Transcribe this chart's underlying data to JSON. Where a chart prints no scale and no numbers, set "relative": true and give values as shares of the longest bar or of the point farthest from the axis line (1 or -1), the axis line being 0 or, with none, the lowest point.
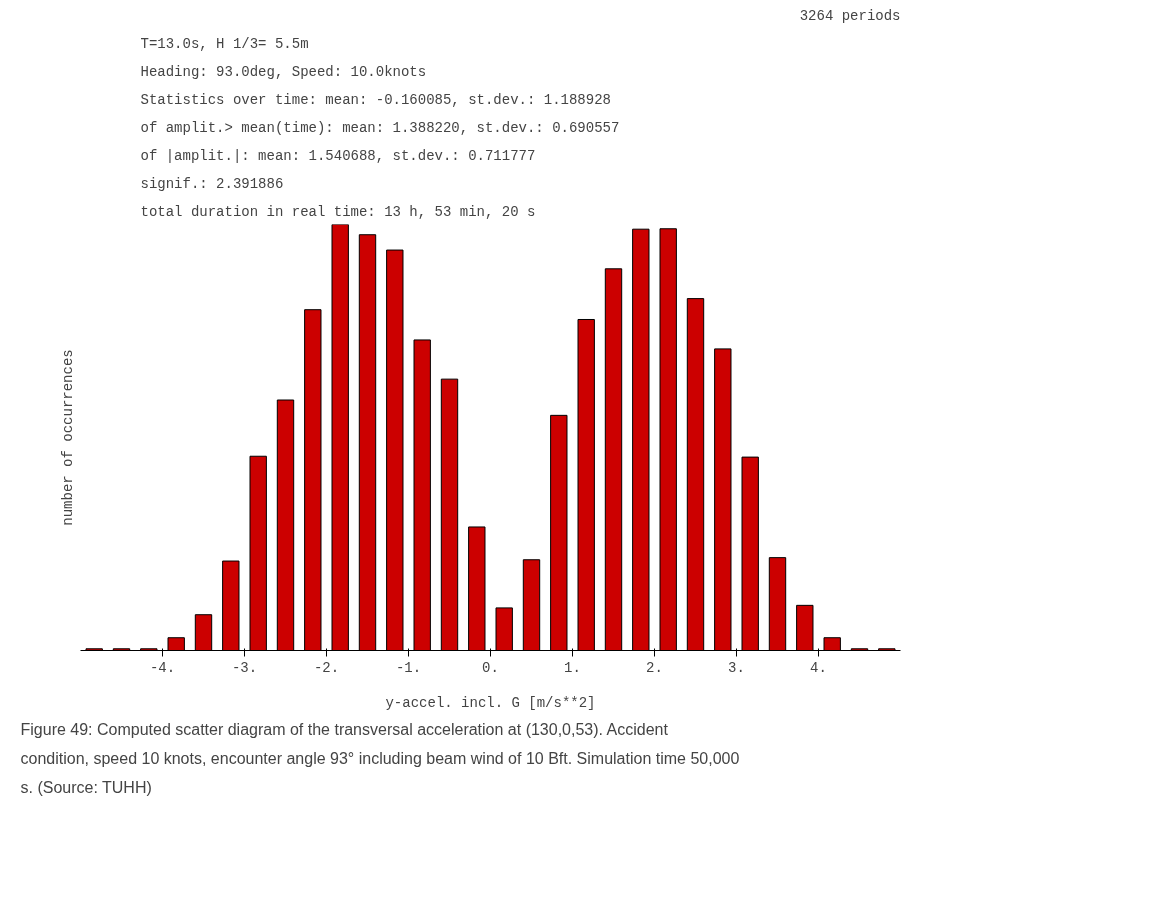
{
  "chart_data": {
    "type": "bar",
    "title": "T=13.0s, H 1/3=  5.5m",
    "subtitle": "Heading:   93.0deg, Speed: 10.0knots",
    "xlabel": "y-accel. incl. G [m/s**2]",
    "ylabel": "number of occurrences",
    "annotations": [
      "Statistics over time:   mean:  -0.160085, st.dev.:  1.188928",
      "of amplit.> mean(time): mean:   1.388220, st.dev.:  0.690557",
      "of |amplit.|:           mean:   1.540688, st.dev.:  0.711777",
      "                     signif.:   2.391886",
      "total duration in real time: 13 h, 53 min, 20 s",
      "3264 periods",
      "Figure 49:  Computed scatter diagram of the transversal acceleration at (130,0,53). Accident condition, speed 10 knots, encounter angle 93° including beam wind of 10 Bft. Simulation time 50,000 s.  (Source: TUHH)"
    ],
    "relative": true,
    "x": [
      -4.833,
      -4.5,
      -4.167,
      -3.833,
      -3.5,
      -3.167,
      -2.833,
      -2.5,
      -2.167,
      -1.833,
      -1.5,
      -1.167,
      -0.833,
      -0.5,
      -0.167,
      0.167,
      0.5,
      0.833,
      1.167,
      1.5,
      1.833,
      2.167,
      2.5,
      2.833,
      3.167,
      3.5,
      3.833,
      4.167,
      4.5,
      4.833
    ],
    "values": [
      0.004,
      0.004,
      0.004,
      0.03,
      0.084,
      0.21,
      0.456,
      0.588,
      0.8,
      1.0,
      0.976,
      0.94,
      0.729,
      0.637,
      0.29,
      0.1,
      0.213,
      0.552,
      0.777,
      0.896,
      0.989,
      0.99,
      0.826,
      0.708,
      0.454,
      0.218,
      0.106,
      0.03,
      0.004,
      0.004
    ],
    "color": "#cc0000",
    "xlim": [
      -5,
      5
    ],
    "xticks": [
      {
        "value": -4,
        "label": "-4."
      },
      {
        "value": -3,
        "label": "-3."
      },
      {
        "value": -2,
        "label": "-2."
      },
      {
        "value": -1,
        "label": "-1."
      },
      {
        "value": 0,
        "label": "0."
      },
      {
        "value": 1,
        "label": "1."
      },
      {
        "value": 2,
        "label": "2."
      },
      {
        "value": 3,
        "label": "3."
      },
      {
        "value": 4,
        "label": "4."
      }
    ]
  }
}
